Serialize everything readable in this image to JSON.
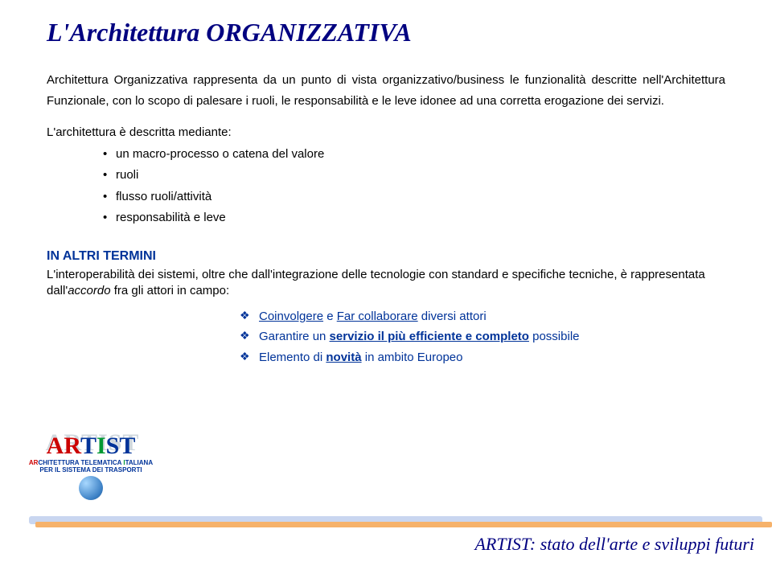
{
  "title": "L'Architettura ORGANIZZATIVA",
  "paragraph": "Architettura Organizzativa rappresenta da un punto di vista organizzativo/business le funzionalità descritte nell'Architettura Funzionale, con lo scopo di palesare i ruoli, le responsabilità e le leve idonee ad una corretta erogazione dei servizi.",
  "mediante_intro": "L'architettura è descritta mediante:",
  "mediante": [
    "un macro-processo o catena del valore",
    "ruoli",
    "flusso ruoli/attività",
    "responsabilità e leve"
  ],
  "subtitle": "IN ALTRI TERMINI",
  "interop_pre": "L'interoperabilità dei sistemi, oltre che dall'integrazione delle tecnologie con standard e specifiche tecniche, è rappresentata dall'",
  "interop_em": "accordo",
  "interop_post": " fra gli attori in campo:",
  "points": {
    "p1_a": "Coinvolgere",
    "p1_mid": " e ",
    "p1_b": "Far collaborare",
    "p1_rest": " diversi attori",
    "p2_pre": "Garantire un ",
    "p2_u": "servizio il più efficiente e completo",
    "p2_post": " possibile",
    "p3_pre": "Elemento di ",
    "p3_u": "novità",
    "p3_post": " in ambito Europeo"
  },
  "logo": {
    "word": "ARTIST",
    "line1_AR": "AR",
    "line1_rest": "CHITETTURA ",
    "line1_T": "T",
    "line1_rest2": "ELEMATICA ",
    "line1_I": "I",
    "line1_rest3": "TALIANA",
    "line2_pre": "PER IL ",
    "line2_S": "S",
    "line2_mid": "ISTEMA DEI ",
    "line2_T": "T",
    "line2_rest": "RASPORTI"
  },
  "footer_brand": "ARTIST",
  "footer_rest": ": stato dell'arte e sviluppi futuri",
  "colors": {
    "title": "#000080",
    "accent": "#003399",
    "stripe_blue": "#c9d6f0",
    "stripe_orange": "#f6b26b"
  }
}
